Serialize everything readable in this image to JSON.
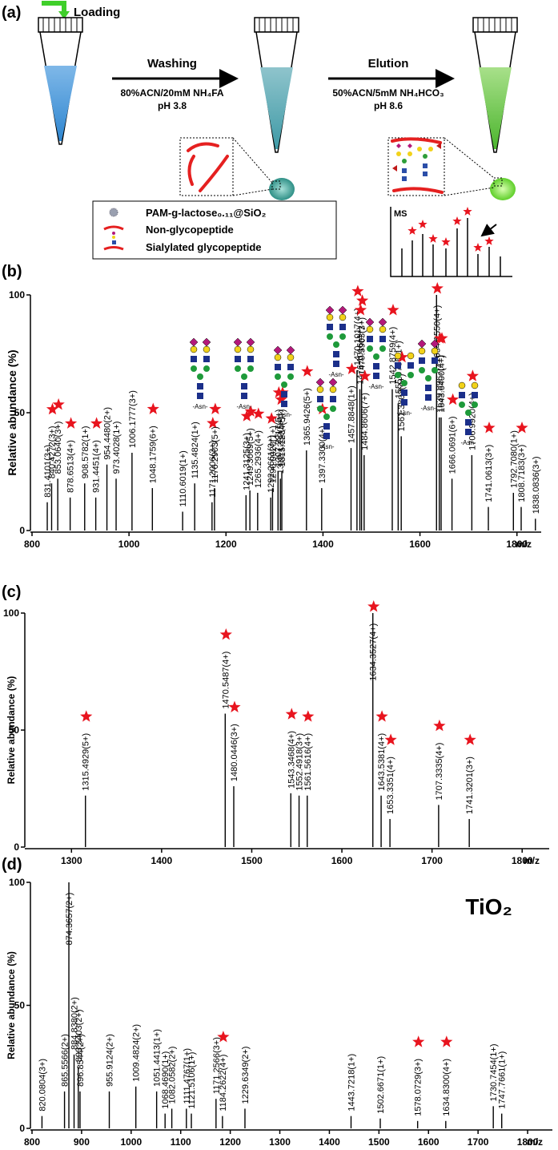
{
  "schematic": {
    "panel": "(a)",
    "loading": "Loading",
    "washing": "Washing",
    "washing_solvent": "80%ACN/20mM NH₄FA",
    "washing_ph": "pH 3.8",
    "elution": "Elution",
    "elution_solvent": "50%ACN/5mM NH₄HCO₃",
    "elution_ph": "pH 8.6",
    "legend": [
      "PAM-g-lactose₀.₁₁@SiO₂",
      "Non-glycopeptide",
      "Sialylated glycopeptide"
    ],
    "ms_label": "MS"
  },
  "chart_data": [
    {
      "type": "spectrum",
      "panel": "(b)",
      "ylabel": "Relative abundance (%)",
      "xlabel": "m/z",
      "color": "#000000",
      "star_color": "#e8141e",
      "xlim": [
        800,
        1850
      ],
      "xticks": [
        800,
        1000,
        1200,
        1400,
        1600,
        1800
      ],
      "ylim": [
        0,
        100
      ],
      "yticks": [
        0,
        50,
        100
      ],
      "x": [
        831.4101,
        840.4272,
        853.064,
        878.6513,
        908.5782,
        931.4451,
        954.448,
        973.4028,
        1006.1777,
        1048.1759,
        1110.6019,
        1135.4824,
        1171.2006,
        1176.2903,
        1241.3125,
        1249.3069,
        1265.2936,
        1292.2661,
        1296.002,
        1307.3217,
        1312.1232,
        1315.1234,
        1365.9426,
        1397.33,
        1457.8848,
        1470.1017,
        1476.1016,
        1479.5963,
        1484.8606,
        1542.8759,
        1555.0785,
        1561.3802,
        1634.155,
        1639.8967,
        1643.64,
        1666.0691,
        1706.992,
        1741.0613,
        1792.708,
        1808.7183,
        1838.0836
      ],
      "values": [
        12,
        20,
        22,
        14,
        20,
        14,
        28,
        22,
        33,
        18,
        8,
        20,
        12,
        18,
        15,
        17,
        16,
        14,
        18,
        25,
        22,
        25,
        34,
        18,
        35,
        68,
        60,
        64,
        32,
        60,
        54,
        40,
        100,
        48,
        48,
        22,
        32,
        10,
        16,
        10,
        5
      ],
      "peak_labels": [
        "831.4101(3+)",
        "840.4272(3+)",
        "853.0640(3+)",
        "878.6513(4+)",
        "908.5782(1+)",
        "931.4451(4+)",
        "954.4480(2+)",
        "973.4028(1+)",
        "1006.1777(3+)",
        "1048.1759(6+)",
        "1110.6019(1+)",
        "1135.4824(1+)",
        "1171.2006(3+)",
        "1176.2903(5+)",
        "1241.3125(3+)",
        "1249.3069(5+)",
        "1265.2936(4+)",
        "1292.2661(3+)",
        "1296.0020(1+)",
        "1307.3217(5+)",
        "1312.1232(5+)",
        "1315.1234(5+)",
        "1365.9426(5+)",
        "1397.3300(4+)",
        "1457.8848(1+)",
        "1470.1017(4+)",
        "1476.1016(4+)",
        "1479.5963(3+)",
        "1484.8606(7+)",
        "1542.8759(4+)",
        "1555.0785(1+)",
        "1561.3802(4+)",
        "1634.1550(4+)",
        "1639.8967(4+)",
        "1643.6400(4+)",
        "1666.0691(6+)",
        "1706.9920(4+)",
        "1741.0613(3+)",
        "1792.7080(1+)",
        "1808.7183(3+)",
        "1838.0836(3+)"
      ],
      "starred": [
        false,
        true,
        true,
        true,
        false,
        true,
        false,
        false,
        false,
        true,
        false,
        false,
        true,
        true,
        true,
        true,
        true,
        true,
        false,
        true,
        true,
        true,
        true,
        true,
        true,
        true,
        true,
        true,
        true,
        true,
        false,
        true,
        true,
        true,
        true,
        true,
        true,
        true,
        false,
        true,
        false
      ]
    },
    {
      "type": "spectrum",
      "panel": "(c)",
      "ylabel": "Relative abundance (%)",
      "xlabel": "m/z",
      "color": "#000000",
      "star_color": "#e8141e",
      "glycan_label": "-Asn-",
      "xlim": [
        1250,
        1830
      ],
      "xticks": [
        1300,
        1400,
        1500,
        1600,
        1700,
        1800
      ],
      "ylim": [
        0,
        100
      ],
      "yticks": [
        0,
        50,
        100
      ],
      "x": [
        1315.4929,
        1470.5487,
        1480.0446,
        1543.3468,
        1552.4918,
        1561.5616,
        1634.3527,
        1643.5381,
        1653.3351,
        1707.3335,
        1741.3201
      ],
      "values": [
        22,
        57,
        26,
        23,
        22,
        22,
        100,
        22,
        12,
        18,
        12
      ],
      "peak_labels": [
        "1315.4929(5+)",
        "1470.5487(4+)",
        "1480.0446(3+)",
        "1543.3468(4+)",
        "1552.4918(3+)",
        "1561.5616(4+)",
        "1634.3527(4+)",
        "1643.5381(4+)",
        "1653.3351(4+)",
        "1707.3335(4+)",
        "1741.3201(3+)"
      ],
      "starred": [
        true,
        true,
        true,
        true,
        false,
        true,
        true,
        true,
        true,
        true,
        true
      ]
    },
    {
      "type": "spectrum",
      "panel": "(d)",
      "ylabel": "Relative abundance (%)",
      "xlabel": "m/z",
      "color": "#000000",
      "star_color": "#e8141e",
      "annotation": "TiO₂",
      "xlim": [
        800,
        1850
      ],
      "xticks": [
        800,
        900,
        1000,
        1100,
        1200,
        1300,
        1400,
        1500,
        1600,
        1700,
        1800
      ],
      "ylim": [
        0,
        100
      ],
      "yticks": [
        0,
        50,
        100
      ],
      "x": [
        820.0804,
        865.5566,
        874.3657,
        884.838,
        893.3403,
        896.8544,
        955.9124,
        1009.4824,
        1051.4413,
        1068.469,
        1082.0582,
        1111.4767,
        1121.5106,
        1171.2566,
        1184.2622,
        1229.6349,
        1443.7218,
        1502.6671,
        1578.0729,
        1634.83,
        1730.7454,
        1747.7661
      ],
      "values": [
        5,
        15,
        100,
        30,
        25,
        15,
        15,
        17,
        15,
        6,
        8,
        8,
        6,
        12,
        5,
        8,
        5,
        4,
        3,
        3,
        9,
        6
      ],
      "peak_labels": [
        "820.0804(3+)",
        "865.5566(2+)",
        "874.3657(2+)",
        "884.8380(2+)",
        "893.3403(2+)",
        "896.8544(2+)",
        "955.9124(2+)",
        "1009.4824(2+)",
        "1051.4413(1+)",
        "1068.4690(1+)",
        "1082.0582(2+)",
        "1111.4767(1+)",
        "1121.5106(1+)",
        "1171.2566(3+)",
        "1184.2622(4+)",
        "1229.6349(2+)",
        "1443.7218(1+)",
        "1502.6671(1+)",
        "1578.0729(3+)",
        "1634.8300(4+)",
        "1730.7454(1+)",
        "1747.7661(1+)"
      ],
      "starred": [
        false,
        false,
        false,
        false,
        false,
        false,
        false,
        false,
        false,
        false,
        false,
        false,
        false,
        false,
        true,
        false,
        false,
        false,
        true,
        true,
        false,
        false
      ]
    }
  ]
}
